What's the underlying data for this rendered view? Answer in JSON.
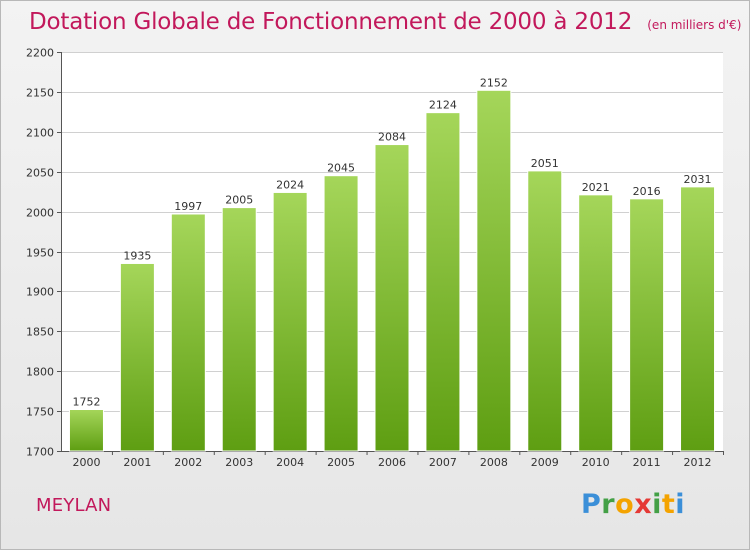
{
  "header": {
    "title": "Dotation Globale de Fonctionnement de 2000 à 2012",
    "subtitle": "(en milliers d'€)"
  },
  "footer": {
    "commune": "MEYLAN",
    "logo_letters": [
      "P",
      "r",
      "o",
      "x",
      "i",
      "t",
      "i"
    ]
  },
  "colors": {
    "title": "#c2185b",
    "bar_top": "#a5d65a",
    "bar_bottom": "#5e9e12",
    "grid": "#d0d0d0"
  },
  "chart_data": {
    "type": "bar",
    "title": "Dotation Globale de Fonctionnement de 2000 à 2012",
    "subtitle": "(en milliers d'€)",
    "xlabel": "",
    "ylabel": "",
    "categories": [
      "2000",
      "2001",
      "2002",
      "2003",
      "2004",
      "2005",
      "2006",
      "2007",
      "2008",
      "2009",
      "2010",
      "2011",
      "2012"
    ],
    "values": [
      1752,
      1935,
      1997,
      2005,
      2024,
      2045,
      2084,
      2124,
      2152,
      2051,
      2021,
      2016,
      2031
    ],
    "ylim": [
      1700,
      2200
    ],
    "yticks": [
      1700,
      1750,
      1800,
      1850,
      1900,
      1950,
      2000,
      2050,
      2100,
      2150,
      2200
    ],
    "grid": true,
    "legend": "none"
  }
}
